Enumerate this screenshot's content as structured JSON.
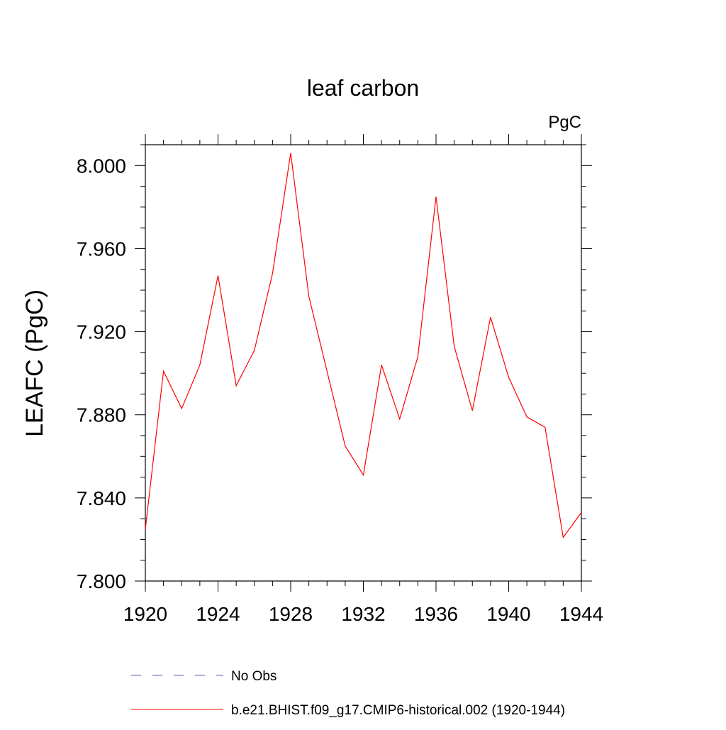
{
  "chart_data": {
    "type": "line",
    "title": "leaf carbon",
    "units_label": "PgC",
    "ylabel": "LEAFC  (PgC)",
    "xlabel": "",
    "xlim": [
      1920,
      1944
    ],
    "ylim": [
      7.8,
      8.01
    ],
    "x_ticks": [
      1920,
      1924,
      1928,
      1932,
      1936,
      1940,
      1944
    ],
    "x_tick_labels": [
      "1920",
      "1924",
      "1928",
      "1932",
      "1936",
      "1940",
      "1944"
    ],
    "y_ticks": [
      7.8,
      7.84,
      7.88,
      7.92,
      7.96,
      8.0
    ],
    "y_tick_labels": [
      "7.800",
      "7.840",
      "7.880",
      "7.920",
      "7.960",
      "8.000"
    ],
    "grid": false,
    "legend_position": "bottom",
    "legend": [
      {
        "label": "No Obs",
        "color": "#5a5ab4",
        "style": "dashed"
      },
      {
        "label": "b.e21.BHIST.f09_g17.CMIP6-historical.002 (1920-1944)",
        "color": "#ff0000",
        "style": "solid"
      }
    ],
    "series": [
      {
        "color": "#ff0000",
        "x": [
          1920,
          1921,
          1922,
          1923,
          1924,
          1925,
          1926,
          1927,
          1928,
          1929,
          1930,
          1931,
          1932,
          1933,
          1934,
          1935,
          1936,
          1937,
          1938,
          1939,
          1940,
          1941,
          1942,
          1943,
          1944
        ],
        "y": [
          7.825,
          7.901,
          7.883,
          7.904,
          7.947,
          7.894,
          7.911,
          7.948,
          8.006,
          7.937,
          7.901,
          7.865,
          7.851,
          7.904,
          7.878,
          7.908,
          7.985,
          7.913,
          7.882,
          7.927,
          7.898,
          7.879,
          7.874,
          7.821,
          7.833
        ]
      }
    ]
  }
}
